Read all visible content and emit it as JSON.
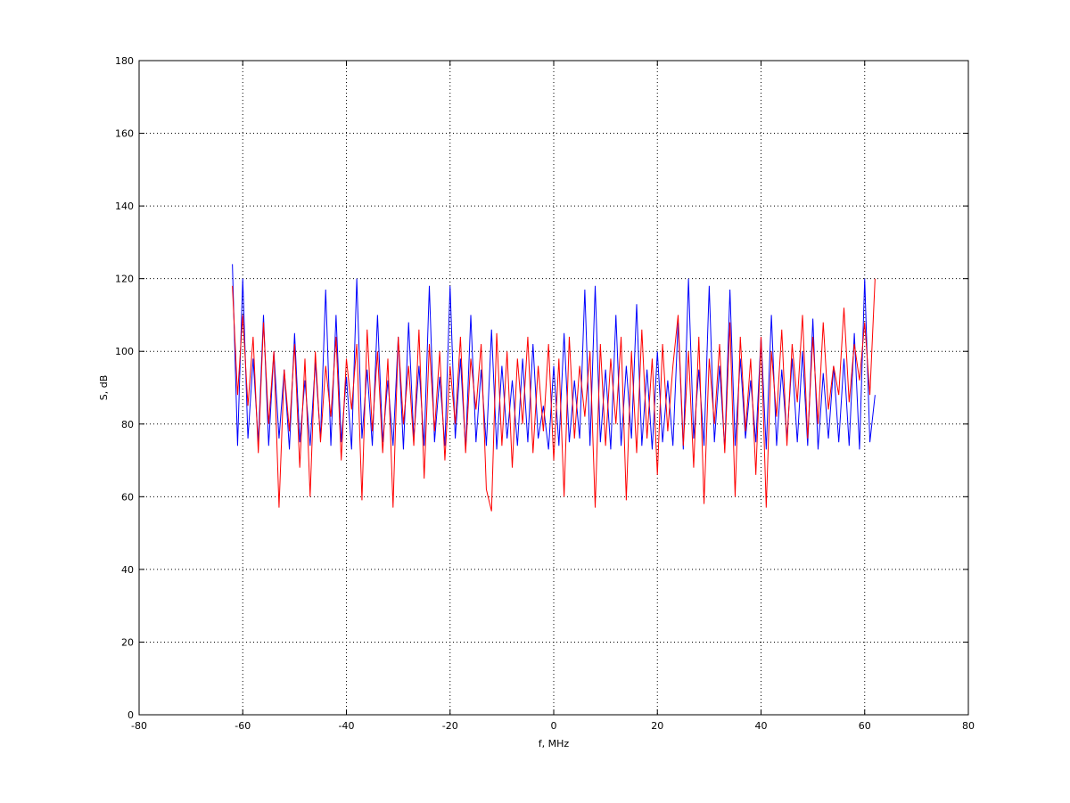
{
  "chart_data": {
    "type": "line",
    "xlabel": "f, MHz",
    "ylabel": "S, dB",
    "x": [
      -62,
      -61,
      -60,
      -59,
      -58,
      -57,
      -56,
      -55,
      -54,
      -53,
      -52,
      -51,
      -50,
      -49,
      -48,
      -47,
      -46,
      -45,
      -44,
      -43,
      -42,
      -41,
      -40,
      -39,
      -38,
      -37,
      -36,
      -35,
      -34,
      -33,
      -32,
      -31,
      -30,
      -29,
      -28,
      -27,
      -26,
      -25,
      -24,
      -23,
      -22,
      -21,
      -20,
      -19,
      -18,
      -17,
      -16,
      -15,
      -14,
      -13,
      -12,
      -11,
      -10,
      -9,
      -8,
      -7,
      -6,
      -5,
      -4,
      -3,
      -2,
      -1,
      0,
      1,
      2,
      3,
      4,
      5,
      6,
      7,
      8,
      9,
      10,
      11,
      12,
      13,
      14,
      15,
      16,
      17,
      18,
      19,
      20,
      21,
      22,
      23,
      24,
      25,
      26,
      27,
      28,
      29,
      30,
      31,
      32,
      33,
      34,
      35,
      36,
      37,
      38,
      39,
      40,
      41,
      42,
      43,
      44,
      45,
      46,
      47,
      48,
      49,
      50,
      51,
      52,
      53,
      54,
      55,
      56,
      57,
      58,
      59,
      60,
      61,
      62
    ],
    "series": [
      {
        "color": "#0000ff",
        "values": [
          124,
          74,
          120,
          76,
          98,
          75,
          110,
          74,
          100,
          76,
          95,
          73,
          105,
          75,
          92,
          74,
          97,
          76,
          117,
          74,
          110,
          75,
          93,
          73,
          120,
          76,
          95,
          74,
          110,
          75,
          92,
          74,
          104,
          73,
          108,
          76,
          96,
          74,
          118,
          75,
          93,
          74,
          118,
          76,
          98,
          73,
          110,
          75,
          95,
          74,
          106,
          73,
          96,
          76,
          92,
          74,
          98,
          75,
          102,
          76,
          85,
          73,
          96,
          74,
          105,
          75,
          92,
          76,
          117,
          74,
          118,
          75,
          95,
          73,
          110,
          74,
          96,
          76,
          113,
          74,
          95,
          73,
          100,
          75,
          92,
          74,
          108,
          73,
          120,
          76,
          95,
          74,
          118,
          75,
          96,
          73,
          117,
          74,
          98,
          76,
          92,
          75,
          104,
          73,
          110,
          74,
          95,
          76,
          98,
          75,
          100,
          74,
          109,
          73,
          94,
          76,
          96,
          75,
          98,
          74,
          105,
          73,
          120,
          75,
          88
        ]
      },
      {
        "color": "#ff0000",
        "values": [
          118,
          88,
          110,
          85,
          104,
          72,
          108,
          80,
          100,
          57,
          95,
          78,
          102,
          68,
          98,
          60,
          100,
          75,
          96,
          82,
          104,
          70,
          98,
          84,
          102,
          59,
          106,
          78,
          100,
          72,
          98,
          57,
          104,
          80,
          96,
          74,
          106,
          65,
          102,
          78,
          100,
          70,
          96,
          80,
          104,
          72,
          98,
          84,
          102,
          62,
          56,
          105,
          74,
          100,
          68,
          98,
          80,
          104,
          72,
          96,
          78,
          102,
          70,
          98,
          60,
          104,
          76,
          96,
          82,
          100,
          57,
          102,
          74,
          98,
          80,
          104,
          59,
          100,
          72,
          106,
          76,
          98,
          66,
          102,
          78,
          96,
          110,
          74,
          100,
          68,
          104,
          58,
          98,
          80,
          102,
          72,
          108,
          60,
          104,
          78,
          98,
          66,
          104,
          57,
          100,
          82,
          106,
          74,
          102,
          86,
          110,
          76,
          104,
          80,
          108,
          84,
          96,
          88,
          112,
          86,
          102,
          92,
          108,
          88,
          120
        ]
      }
    ],
    "xlim": [
      -80,
      80
    ],
    "xticks": [
      -80,
      -60,
      -40,
      -20,
      0,
      20,
      40,
      60,
      80
    ],
    "ylim": [
      0,
      180
    ],
    "yticks": [
      0,
      20,
      40,
      60,
      80,
      100,
      120,
      140,
      160,
      180
    ],
    "grid": true
  }
}
